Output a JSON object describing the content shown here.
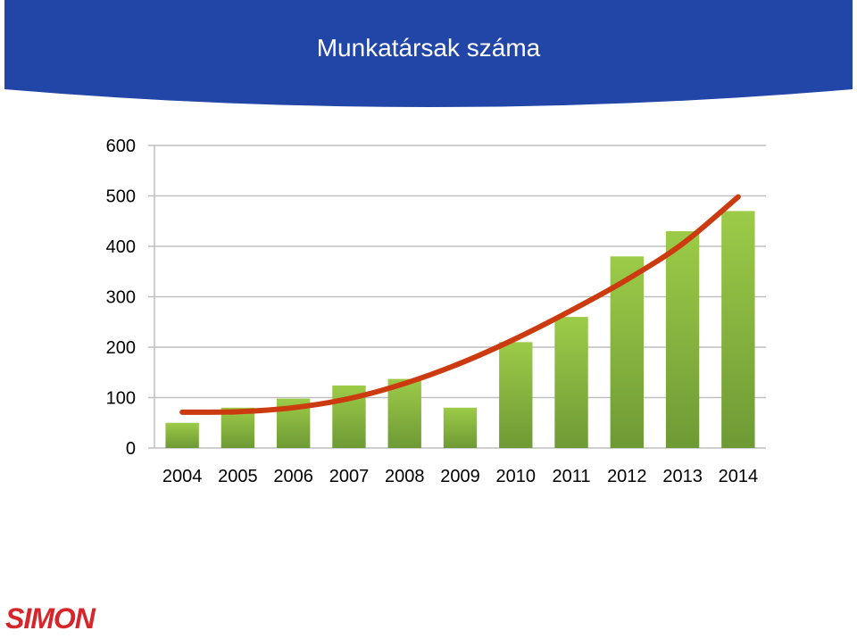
{
  "slide": {
    "title": "Munkatársak száma",
    "logo_text": "SIMON"
  },
  "colors": {
    "title_band": "#2246a8",
    "bar_top": "#9ccb48",
    "bar_bottom": "#6e9a35",
    "trend_line": "#cc3b10",
    "grid": "#bfbfbf",
    "logo": "#d7262b"
  },
  "chart_data": {
    "type": "bar",
    "title": "",
    "xlabel": "",
    "ylabel": "",
    "categories": [
      "2004",
      "2005",
      "2006",
      "2007",
      "2008",
      "2009",
      "2010",
      "2011",
      "2012",
      "2013",
      "2014"
    ],
    "values": [
      50,
      80,
      98,
      124,
      137,
      80,
      210,
      260,
      380,
      430,
      470
    ],
    "ylim": [
      0,
      600
    ],
    "yticks": [
      0,
      100,
      200,
      300,
      400,
      500,
      600
    ],
    "grid": true,
    "legend": "none",
    "trendline": {
      "type": "polynomial",
      "x": [
        "2004",
        "2005",
        "2006",
        "2007",
        "2008",
        "2009",
        "2010",
        "2011",
        "2012",
        "2013",
        "2014"
      ],
      "values": [
        71,
        72,
        80,
        98,
        128,
        168,
        217,
        273,
        334,
        405,
        498
      ]
    }
  }
}
